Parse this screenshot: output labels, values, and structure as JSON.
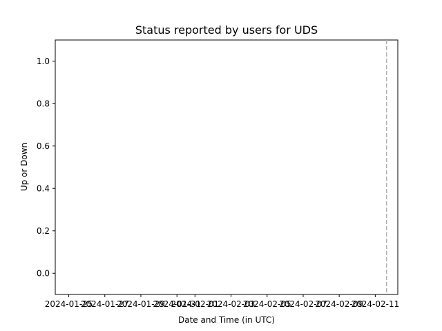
{
  "chart_data": {
    "type": "line",
    "title": "Status reported by users for UDS",
    "xlabel": "Date and Time (in UTC)",
    "ylabel": "Up or Down",
    "x_ticks": [
      "2024-01-25",
      "2024-01-27",
      "2024-01-29",
      "2024-01-31",
      "2024-02-01",
      "2024-02-03",
      "2024-02-05",
      "2024-02-07",
      "2024-02-09",
      "2024-02-11"
    ],
    "y_ticks": [
      "0.0",
      "0.2",
      "0.4",
      "0.6",
      "0.8",
      "1.0"
    ],
    "xlim": [
      "2024-01-24T06:00",
      "2024-02-12T06:00"
    ],
    "ylim": [
      -0.1,
      1.1
    ],
    "series": [],
    "vline": {
      "x": "2024-02-11T15:00",
      "style": "dashed",
      "color": "#b0b0b0"
    },
    "grid": false
  }
}
